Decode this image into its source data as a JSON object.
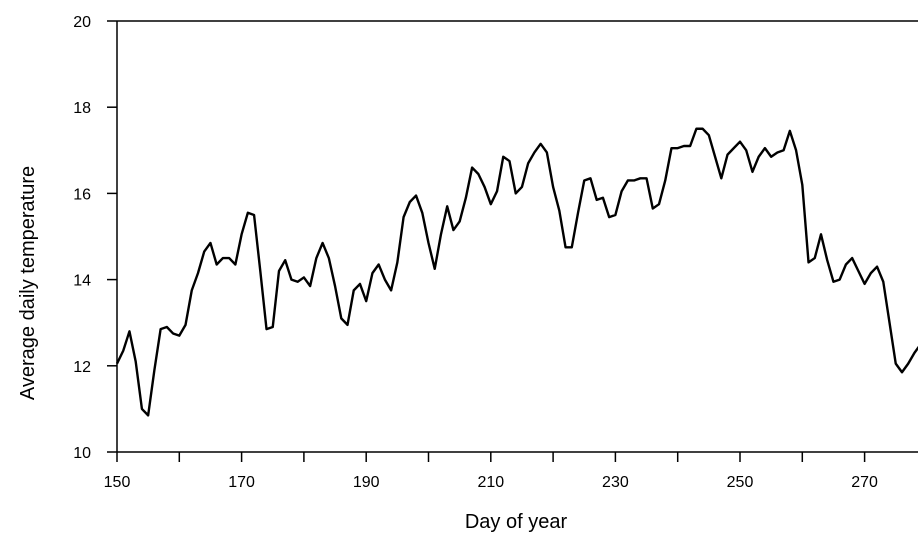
{
  "chart_data": {
    "type": "line",
    "title": "",
    "xlabel": "Day of year",
    "ylabel": "Average daily temperature",
    "xlim": [
      150,
      279
    ],
    "ylim": [
      10,
      20
    ],
    "xticks": [
      150,
      170,
      190,
      210,
      230,
      250,
      270
    ],
    "xticks_minor": [
      160,
      180,
      200,
      220,
      240,
      260
    ],
    "yticks": [
      10,
      12,
      14,
      16,
      18,
      20
    ],
    "grid": false,
    "legend": "none",
    "line_color": "#000000",
    "series": [
      {
        "x": [
          150,
          151,
          152,
          153,
          154,
          155,
          156,
          157,
          158,
          159,
          160,
          161,
          162,
          163,
          164,
          165,
          166,
          167,
          168,
          169,
          170,
          171,
          172,
          173,
          174,
          175,
          176,
          177,
          178,
          179,
          180,
          181,
          182,
          183,
          184,
          185,
          186,
          187,
          188,
          189,
          190,
          191,
          192,
          193,
          194,
          195,
          196,
          197,
          198,
          199,
          200,
          201,
          202,
          203,
          204,
          205,
          206,
          207,
          208,
          209,
          210,
          211,
          212,
          213,
          214,
          215,
          216,
          217,
          218,
          219,
          220,
          221,
          222,
          223,
          224,
          225,
          226,
          227,
          228,
          229,
          230,
          231,
          232,
          233,
          234,
          235,
          236,
          237,
          238,
          239,
          240,
          241,
          242,
          243,
          244,
          245,
          246,
          247,
          248,
          249,
          250,
          251,
          252,
          253,
          254,
          255,
          256,
          257,
          258,
          259,
          260,
          261,
          262,
          263,
          264,
          265,
          266,
          267,
          268,
          269,
          270,
          271,
          272,
          273,
          274,
          275,
          276,
          277,
          278,
          279
        ],
        "y": [
          12.05,
          12.35,
          12.8,
          12.1,
          11.0,
          10.85,
          11.9,
          12.85,
          12.9,
          12.75,
          12.7,
          12.95,
          13.75,
          14.15,
          14.65,
          14.85,
          14.35,
          14.5,
          14.5,
          14.35,
          15.05,
          15.55,
          15.5,
          14.2,
          12.85,
          12.9,
          14.2,
          14.45,
          14.0,
          13.95,
          14.05,
          13.85,
          14.5,
          14.85,
          14.5,
          13.85,
          13.1,
          12.95,
          13.75,
          13.9,
          13.5,
          14.15,
          14.35,
          14.0,
          13.75,
          14.4,
          15.45,
          15.8,
          15.95,
          15.55,
          14.85,
          14.25,
          15.05,
          15.7,
          15.15,
          15.35,
          15.9,
          16.6,
          16.45,
          16.15,
          15.75,
          16.05,
          16.85,
          16.75,
          16.0,
          16.15,
          16.7,
          16.95,
          17.15,
          16.95,
          16.15,
          15.6,
          14.75,
          14.75,
          15.55,
          16.3,
          16.35,
          15.85,
          15.9,
          15.45,
          15.5,
          16.05,
          16.3,
          16.3,
          16.35,
          16.35,
          15.65,
          15.75,
          16.3,
          17.05,
          17.05,
          17.1,
          17.1,
          17.5,
          17.5,
          17.35,
          16.85,
          16.35,
          16.9,
          17.05,
          17.2,
          17.0,
          16.5,
          16.85,
          17.05,
          16.85,
          16.95,
          17.0,
          17.45,
          17.0,
          16.2,
          14.4,
          14.5,
          15.05,
          14.45,
          13.95,
          14.0,
          14.35,
          14.5,
          14.2,
          13.9,
          14.15,
          14.3,
          13.95,
          13.0,
          12.05,
          11.85,
          12.05,
          12.3,
          12.5
        ]
      }
    ]
  }
}
